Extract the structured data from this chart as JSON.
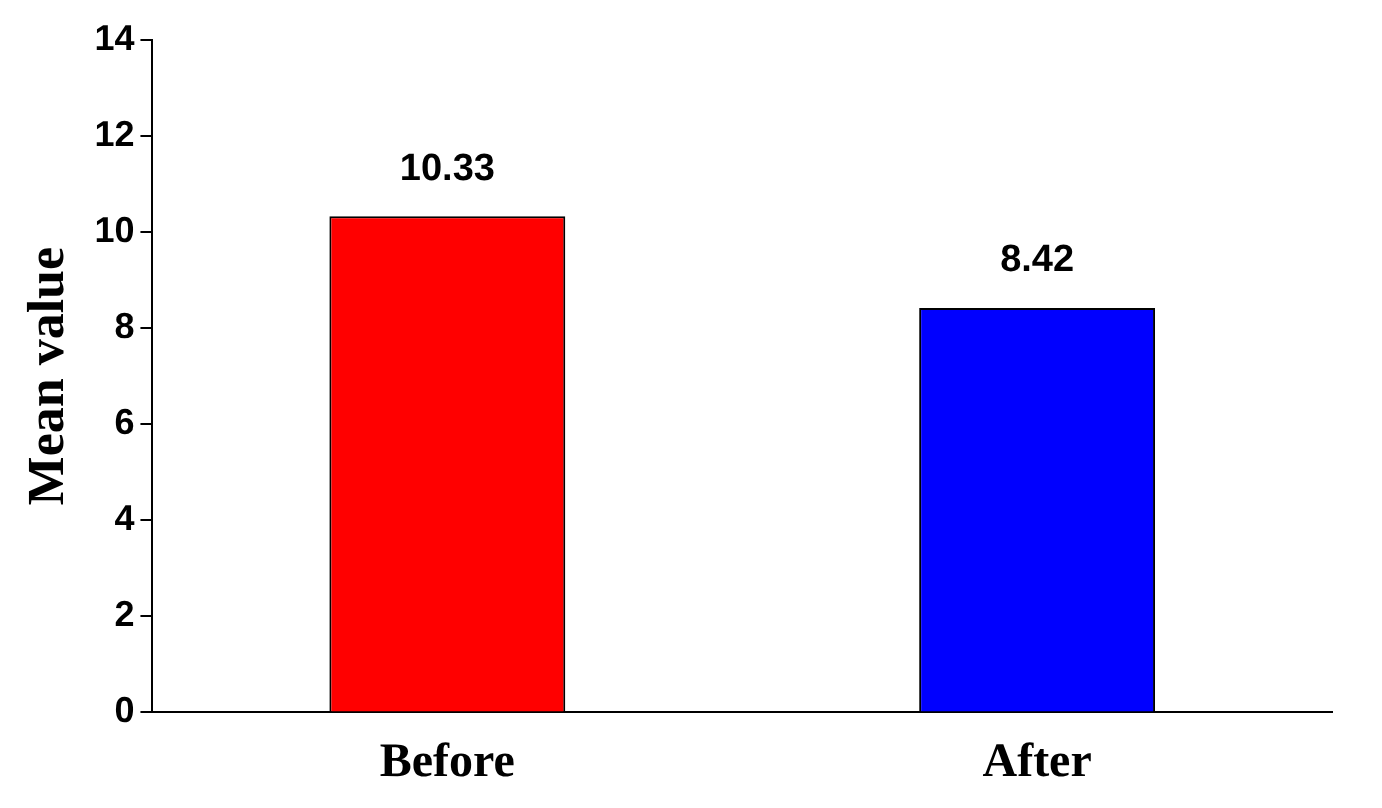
{
  "chart_data": {
    "type": "bar",
    "ylabel": "Mean value",
    "categories": [
      "Before",
      "After"
    ],
    "values": [
      10.33,
      8.42
    ],
    "colors": [
      "#ff0000",
      "#0000ff"
    ],
    "ylim": [
      0,
      14
    ],
    "yticks": [
      0,
      2,
      4,
      6,
      8,
      10,
      12,
      14
    ],
    "grid": false,
    "legend": false,
    "data_labels": true
  }
}
